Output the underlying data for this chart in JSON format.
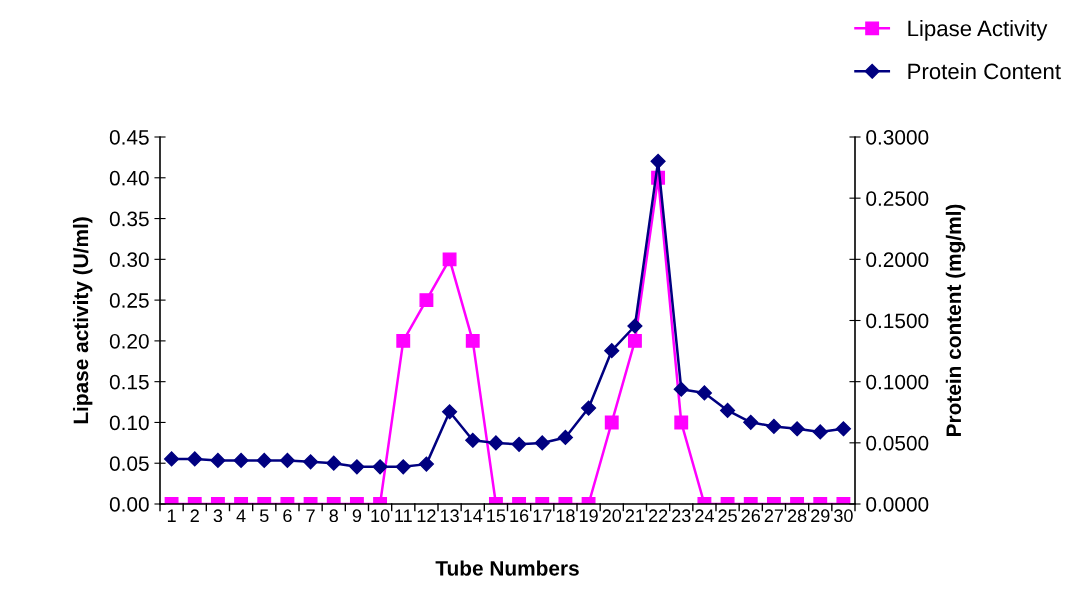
{
  "chart_data": {
    "type": "line",
    "xlabel": "Tube Numbers",
    "ylabel": "Lipase activity (U/ml)",
    "y2label": "Protein content (mg/ml)",
    "categories": [
      "1",
      "2",
      "3",
      "4",
      "5",
      "6",
      "7",
      "8",
      "9",
      "10",
      "11",
      "12",
      "13",
      "14",
      "15",
      "16",
      "17",
      "18",
      "19",
      "20",
      "21",
      "22",
      "23",
      "24",
      "25",
      "26",
      "27",
      "28",
      "29",
      "30"
    ],
    "series": [
      {
        "name": "Lipase Activity",
        "color": "#ff00ff",
        "marker": "square",
        "values": [
          0,
          0,
          0,
          0,
          0,
          0,
          0,
          0,
          0,
          0,
          0.2,
          0.25,
          0.3,
          0.2,
          0,
          0,
          0,
          0,
          0,
          0.1,
          0.2,
          0.4,
          0.1,
          0,
          0,
          0,
          0,
          0,
          0,
          0
        ]
      },
      {
        "name": "Protein Content",
        "color": "#000080",
        "marker": "diamond",
        "axis": "y2",
        "values": [
          0.0368,
          0.0368,
          0.0356,
          0.0356,
          0.0356,
          0.0356,
          0.0345,
          0.0334,
          0.0304,
          0.0304,
          0.0304,
          0.0326,
          0.0754,
          0.0521,
          0.0499,
          0.0488,
          0.0499,
          0.0544,
          0.0784,
          0.1253,
          0.1455,
          0.2801,
          0.0938,
          0.0908,
          0.0765,
          0.0668,
          0.0634,
          0.0615,
          0.0589,
          0.0615
        ]
      }
    ],
    "ylim": [
      0,
      0.45
    ],
    "yticks": [
      {
        "value": 0,
        "label": "0.00"
      },
      {
        "value": 0.05,
        "label": "0.05"
      },
      {
        "value": 0.1,
        "label": "0.10"
      },
      {
        "value": 0.15,
        "label": "0.15"
      },
      {
        "value": 0.2,
        "label": "0.20"
      },
      {
        "value": 0.25,
        "label": "0.25"
      },
      {
        "value": 0.3,
        "label": "0.30"
      },
      {
        "value": 0.35,
        "label": "0.35"
      },
      {
        "value": 0.4,
        "label": "0.40"
      },
      {
        "value": 0.45,
        "label": "0.45"
      }
    ],
    "y2lim": [
      0,
      0.3
    ],
    "y2ticks": [
      {
        "value": 0,
        "label": "0.0000"
      },
      {
        "value": 0.05,
        "label": "0.0500"
      },
      {
        "value": 0.1,
        "label": "0.1000"
      },
      {
        "value": 0.15,
        "label": "0.1500"
      },
      {
        "value": 0.2,
        "label": "0.2000"
      },
      {
        "value": 0.25,
        "label": "0.2500"
      },
      {
        "value": 0.3,
        "label": "0.3000"
      }
    ],
    "grid": false,
    "legend": "top right",
    "line_style": "solid"
  }
}
